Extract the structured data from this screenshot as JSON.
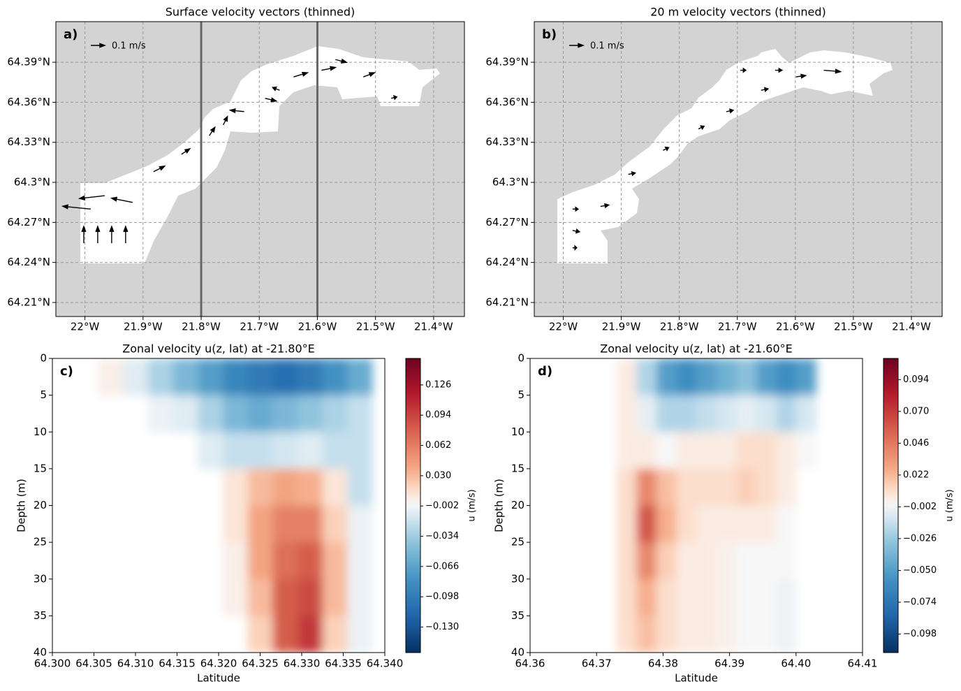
{
  "chart_data": [
    {
      "type": "quiver",
      "title": "Surface velocity vectors (thinned)",
      "panel_label": "a)",
      "key_label": "0.1 m/s",
      "key_value": 0.1,
      "xlim": [
        -22.05,
        -21.347
      ],
      "ylim": [
        64.1995,
        64.4204
      ],
      "xticks": [
        {
          "value": -22.0,
          "label": "22°W"
        },
        {
          "value": -21.9,
          "label": "21.9°W"
        },
        {
          "value": -21.8,
          "label": "21.8°W"
        },
        {
          "value": -21.7,
          "label": "21.7°W"
        },
        {
          "value": -21.6,
          "label": "21.6°W"
        },
        {
          "value": -21.5,
          "label": "21.5°W"
        },
        {
          "value": -21.4,
          "label": "21.4°W"
        }
      ],
      "yticks": [
        {
          "value": 64.21,
          "label": "64.21°N"
        },
        {
          "value": 64.24,
          "label": "64.24°N"
        },
        {
          "value": 64.27,
          "label": "64.27°N"
        },
        {
          "value": 64.3,
          "label": "64.3°N"
        },
        {
          "value": 64.33,
          "label": "64.33°N"
        },
        {
          "value": 64.36,
          "label": "64.36°N"
        },
        {
          "value": 64.39,
          "label": "64.39°N"
        }
      ],
      "grid": true,
      "sections": [
        -21.8,
        -21.6
      ],
      "vectors": {
        "lon": [
          -22.002,
          -21.978,
          -21.954,
          -21.93,
          -21.99,
          -21.966,
          -21.918,
          -21.882,
          -21.834,
          -21.786,
          -21.762,
          -21.726,
          -21.69,
          -21.665,
          -21.641,
          -21.593,
          -21.569,
          -21.521,
          -21.473
        ],
        "lat": [
          64.2544,
          64.2544,
          64.2544,
          64.2544,
          64.28,
          64.29,
          64.285,
          64.308,
          64.321,
          64.335,
          64.343,
          64.353,
          64.363,
          64.369,
          64.379,
          64.384,
          64.392,
          64.379,
          64.363
        ],
        "u": [
          0,
          0,
          0,
          0,
          -0.2,
          -0.18,
          -0.15,
          0.08,
          0.06,
          0.04,
          0.03,
          -0.1,
          0.08,
          -0.05,
          0.1,
          0.1,
          0.08,
          0.08,
          0.04
        ],
        "v": [
          0.12,
          0.12,
          0.12,
          0.12,
          0.02,
          -0.02,
          0.03,
          0.04,
          0.04,
          0.06,
          0.06,
          0.01,
          -0.02,
          0.02,
          0.03,
          0.02,
          -0.02,
          0.03,
          0.01
        ]
      }
    },
    {
      "type": "quiver",
      "title": "20 m velocity vectors (thinned)",
      "panel_label": "b)",
      "key_label": "0.1 m/s",
      "key_value": 0.1,
      "xlim": [
        -22.05,
        -21.347
      ],
      "ylim": [
        64.1995,
        64.4204
      ],
      "xticks": [
        {
          "value": -22.0,
          "label": "22°W"
        },
        {
          "value": -21.9,
          "label": "21.9°W"
        },
        {
          "value": -21.8,
          "label": "21.8°W"
        },
        {
          "value": -21.7,
          "label": "21.7°W"
        },
        {
          "value": -21.6,
          "label": "21.6°W"
        },
        {
          "value": -21.5,
          "label": "21.5°W"
        },
        {
          "value": -21.4,
          "label": "21.4°W"
        }
      ],
      "yticks": [
        {
          "value": 64.21,
          "label": "64.21°N"
        },
        {
          "value": 64.24,
          "label": "64.24°N"
        },
        {
          "value": 64.27,
          "label": "64.27°N"
        },
        {
          "value": 64.3,
          "label": "64.3°N"
        },
        {
          "value": 64.33,
          "label": "64.33°N"
        },
        {
          "value": 64.36,
          "label": "64.36°N"
        },
        {
          "value": 64.39,
          "label": "64.39°N"
        }
      ],
      "grid": true,
      "vectors": {
        "lon": [
          -21.984,
          -21.984,
          -21.984,
          -21.936,
          -21.888,
          -21.828,
          -21.767,
          -21.719,
          -21.659,
          -21.599,
          -21.551,
          -21.635,
          -21.695
        ],
        "lat": [
          64.28,
          64.264,
          64.251,
          64.282,
          64.306,
          64.324,
          64.34,
          64.353,
          64.369,
          64.379,
          64.384,
          64.384,
          64.384
        ],
        "u": [
          0.04,
          0.05,
          0.03,
          0.06,
          0.05,
          0.04,
          0.04,
          0.05,
          0.05,
          0.07,
          0.12,
          0.05,
          0.04
        ],
        "v": [
          0,
          -0.01,
          0,
          0.01,
          0.01,
          0.02,
          0.02,
          0.01,
          0.01,
          0.01,
          -0.01,
          0,
          0
        ]
      }
    },
    {
      "type": "contour",
      "title": "Zonal velocity u(z, lat) at -21.80°E",
      "panel_label": "c)",
      "xlabel": "Latitude",
      "ylabel": "Depth (m)",
      "colorbar_label": "u (m/s)",
      "xlim": [
        64.3,
        64.34
      ],
      "ylim": [
        0,
        40
      ],
      "y_inverted": true,
      "xticks": [
        {
          "value": 64.3,
          "label": "64.300"
        },
        {
          "value": 64.305,
          "label": "64.305"
        },
        {
          "value": 64.31,
          "label": "64.310"
        },
        {
          "value": 64.315,
          "label": "64.315"
        },
        {
          "value": 64.32,
          "label": "64.320"
        },
        {
          "value": 64.325,
          "label": "64.325"
        },
        {
          "value": 64.33,
          "label": "64.330"
        },
        {
          "value": 64.335,
          "label": "64.335"
        },
        {
          "value": 64.34,
          "label": "64.340"
        }
      ],
      "yticks": [
        0,
        5,
        10,
        15,
        20,
        25,
        30,
        35,
        40
      ],
      "clim": [
        -0.157,
        0.154
      ],
      "cticks": [
        {
          "value": -0.13,
          "label": "−0.130"
        },
        {
          "value": -0.098,
          "label": "−0.098"
        },
        {
          "value": -0.066,
          "label": "−0.066"
        },
        {
          "value": -0.034,
          "label": "−0.034"
        },
        {
          "value": -0.002,
          "label": "−0.002"
        },
        {
          "value": 0.03,
          "label": "0.030"
        },
        {
          "value": 0.062,
          "label": "0.062"
        },
        {
          "value": 0.094,
          "label": "0.094"
        },
        {
          "value": 0.126,
          "label": "0.126"
        }
      ],
      "lats": [
        64.307,
        64.31,
        64.313,
        64.316,
        64.319,
        64.322,
        64.325,
        64.328,
        64.331,
        64.334,
        64.337
      ],
      "depths": [
        2.5,
        7.5,
        12.5,
        17.5,
        22.5,
        27.5,
        32.5,
        37.5
      ],
      "u": [
        [
          0.005,
          -0.01,
          -0.03,
          -0.05,
          -0.07,
          -0.09,
          -0.1,
          -0.11,
          -0.1,
          -0.08,
          -0.06
        ],
        [
          null,
          null,
          -0.005,
          -0.01,
          -0.03,
          -0.05,
          -0.06,
          -0.05,
          -0.04,
          -0.03,
          -0.02
        ],
        [
          null,
          null,
          null,
          null,
          -0.01,
          -0.02,
          -0.02,
          -0.015,
          -0.01,
          -0.02,
          -0.02
        ],
        [
          null,
          null,
          null,
          null,
          null,
          0.01,
          0.03,
          0.04,
          0.035,
          0.01,
          -0.02
        ],
        [
          null,
          null,
          null,
          null,
          null,
          0.01,
          0.04,
          0.06,
          0.06,
          0.02,
          -0.005
        ],
        [
          null,
          null,
          null,
          null,
          null,
          0.005,
          0.04,
          0.07,
          0.08,
          0.03,
          -0.005
        ],
        [
          null,
          null,
          null,
          null,
          null,
          0.005,
          0.03,
          0.08,
          0.09,
          0.03,
          -0.005
        ],
        [
          null,
          null,
          null,
          null,
          null,
          null,
          0.02,
          0.08,
          0.1,
          0.02,
          -0.005
        ]
      ]
    },
    {
      "type": "contour",
      "title": "Zonal velocity u(z, lat) at -21.60°E",
      "panel_label": "d)",
      "xlabel": "Latitude",
      "ylabel": "Depth (m)",
      "colorbar_label": "u (m/s)",
      "xlim": [
        64.36,
        64.41
      ],
      "ylim": [
        0,
        40
      ],
      "y_inverted": true,
      "xticks": [
        64.36,
        64.37,
        64.38,
        64.39,
        {
          "value": 64.4,
          "label": "64.40"
        },
        64.41
      ],
      "yticks": [
        0,
        5,
        10,
        15,
        20,
        25,
        30,
        35,
        40
      ],
      "clim": [
        -0.112,
        0.11
      ],
      "cticks": [
        {
          "value": -0.098,
          "label": "−0.098"
        },
        {
          "value": -0.074,
          "label": "−0.074"
        },
        {
          "value": -0.05,
          "label": "−0.050"
        },
        {
          "value": -0.026,
          "label": "−0.026"
        },
        {
          "value": -0.002,
          "label": "−0.002"
        },
        {
          "value": 0.022,
          "label": "0.022"
        },
        {
          "value": 0.046,
          "label": "0.046"
        },
        {
          "value": 0.07,
          "label": "0.070"
        },
        {
          "value": 0.094,
          "label": "0.094"
        }
      ],
      "lats": [
        64.3745,
        64.3775,
        64.3805,
        64.3835,
        64.3865,
        64.3895,
        64.3925,
        64.3955,
        64.3985,
        64.4015
      ],
      "depths": [
        2.5,
        7.5,
        12.5,
        17.5,
        22.5,
        27.5,
        32.5,
        37.5
      ],
      "u": [
        [
          0.005,
          -0.02,
          -0.05,
          -0.06,
          -0.05,
          -0.04,
          -0.03,
          -0.05,
          -0.06,
          -0.05
        ],
        [
          0.005,
          -0.005,
          -0.02,
          -0.02,
          -0.015,
          -0.01,
          -0.005,
          -0.01,
          -0.02,
          -0.01
        ],
        [
          0.005,
          0.005,
          0.0,
          0.005,
          0.005,
          0.005,
          0.01,
          0.01,
          0.005,
          0.0
        ],
        [
          0.01,
          0.04,
          0.02,
          0.01,
          0.01,
          0.01,
          0.015,
          0.01,
          0.005,
          null
        ],
        [
          0.01,
          0.06,
          0.025,
          0.01,
          0.005,
          0.005,
          0.005,
          0.005,
          0.0,
          null
        ],
        [
          0.01,
          0.04,
          0.015,
          0.005,
          0.005,
          0.003,
          0.0,
          0.0,
          0.0,
          null
        ],
        [
          0.01,
          0.025,
          0.01,
          0.005,
          0.005,
          0.003,
          0.0,
          0.0,
          -0.003,
          null
        ],
        [
          0.01,
          0.02,
          0.01,
          0.005,
          0.005,
          0.003,
          0.0,
          0.0,
          -0.003,
          null
        ]
      ]
    }
  ]
}
